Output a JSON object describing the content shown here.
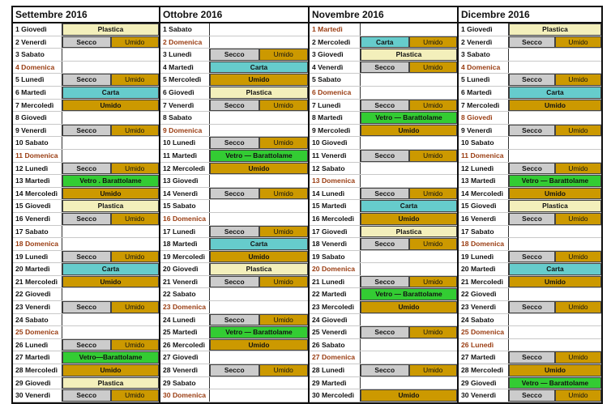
{
  "colors": {
    "Plastica": "#f3efbb",
    "Carta": "#66cccc",
    "Umido": "#cc9900",
    "Secco": "#cccccc",
    "Vetro": "#33cc33",
    "holiday_text": "#9a3d12"
  },
  "months": [
    {
      "title": "Settembre 2016",
      "days": [
        {
          "label": "1 Giovedì",
          "items": [
            "Plastica"
          ]
        },
        {
          "label": "2 Venerdì",
          "items": [
            "Secco",
            "Umido"
          ]
        },
        {
          "label": "3 Sabato",
          "items": []
        },
        {
          "label": "4 Domenica",
          "holiday": true,
          "items": []
        },
        {
          "label": "5 Lunedì",
          "items": [
            "Secco",
            "Umido"
          ]
        },
        {
          "label": "6 Martedì",
          "items": [
            "Carta"
          ]
        },
        {
          "label": "7 Mercoledì",
          "items": [
            "Umido"
          ]
        },
        {
          "label": "8 Giovedì",
          "items": []
        },
        {
          "label": "9 Venerdì",
          "items": [
            "Secco",
            "Umido"
          ]
        },
        {
          "label": "10 Sabato",
          "items": []
        },
        {
          "label": "11 Domenica",
          "holiday": true,
          "items": []
        },
        {
          "label": "12 Lunedì",
          "items": [
            "Secco",
            "Umido"
          ]
        },
        {
          "label": "13 Martedì",
          "items": [
            "Vetro . Barattolame"
          ]
        },
        {
          "label": "14 Mercoledì",
          "items": [
            "Umido"
          ]
        },
        {
          "label": "15 Giovedì",
          "items": [
            "Plastica"
          ]
        },
        {
          "label": "16 Venerdì",
          "items": [
            "Secco",
            "Umido"
          ]
        },
        {
          "label": "17 Sabato",
          "items": []
        },
        {
          "label": "18 Domenica",
          "holiday": true,
          "items": []
        },
        {
          "label": "19 Lunedì",
          "items": [
            "Secco",
            "Umido"
          ]
        },
        {
          "label": "20 Martedì",
          "items": [
            "Carta"
          ]
        },
        {
          "label": "21 Mercoledì",
          "items": [
            "Umido"
          ]
        },
        {
          "label": "22 Giovedì",
          "items": []
        },
        {
          "label": "23 Venerdì",
          "items": [
            "Secco",
            "Umido"
          ]
        },
        {
          "label": "24 Sabato",
          "items": []
        },
        {
          "label": "25 Domenica",
          "holiday": true,
          "items": []
        },
        {
          "label": "26 Lunedì",
          "items": [
            "Secco",
            "Umido"
          ]
        },
        {
          "label": "27 Martedì",
          "items": [
            "Vetro—Barattolame"
          ]
        },
        {
          "label": "28 Mercoledì",
          "items": [
            "Umido"
          ]
        },
        {
          "label": "29 Giovedì",
          "items": [
            "Plastica"
          ]
        },
        {
          "label": "30 Venerdì",
          "items": [
            "Secco",
            "Umido"
          ]
        }
      ]
    },
    {
      "title": "Ottobre 2016",
      "days": [
        {
          "label": "1 Sabato",
          "items": []
        },
        {
          "label": "2 Domenica",
          "holiday": true,
          "items": []
        },
        {
          "label": "3 Lunedì",
          "items": [
            "Secco",
            "Umido"
          ]
        },
        {
          "label": "4 Martedì",
          "items": [
            "Carta"
          ]
        },
        {
          "label": "5 Mercoledì",
          "items": [
            "Umido"
          ]
        },
        {
          "label": "6 Giovedì",
          "items": [
            "Plastica"
          ]
        },
        {
          "label": "7 Venerdì",
          "items": [
            "Secco",
            "Umido"
          ]
        },
        {
          "label": "8 Sabato",
          "items": []
        },
        {
          "label": "9 Domenica",
          "holiday": true,
          "items": []
        },
        {
          "label": "10 Lunedì",
          "items": [
            "Secco",
            "Umido"
          ]
        },
        {
          "label": "11 Martedì",
          "items": [
            "Vetro — Barattolame"
          ]
        },
        {
          "label": "12 Mercoledì",
          "items": [
            "Umido"
          ]
        },
        {
          "label": "13 Giovedì",
          "items": []
        },
        {
          "label": "14 Venerdì",
          "items": [
            "Secco",
            "Umido"
          ]
        },
        {
          "label": "15 Sabato",
          "items": []
        },
        {
          "label": "16 Domenica",
          "holiday": true,
          "items": []
        },
        {
          "label": "17 Lunedì",
          "items": [
            "Secco",
            "Umido"
          ]
        },
        {
          "label": "18 Martedì",
          "items": [
            "Carta"
          ]
        },
        {
          "label": "19 Mercoledì",
          "items": [
            "Umido"
          ]
        },
        {
          "label": "20 Giovedì",
          "items": [
            "Plastica"
          ]
        },
        {
          "label": "21 Venerdì",
          "items": [
            "Secco",
            "Umido"
          ]
        },
        {
          "label": "22 Sabato",
          "items": []
        },
        {
          "label": "23 Domenica",
          "holiday": true,
          "items": []
        },
        {
          "label": "24 Lunedì",
          "items": [
            "Secco",
            "Umido"
          ]
        },
        {
          "label": "25 Martedì",
          "items": [
            "Vetro — Barattolame"
          ]
        },
        {
          "label": "26 Mercoledì",
          "items": [
            "Umido"
          ]
        },
        {
          "label": "27 Giovedì",
          "items": []
        },
        {
          "label": "28 Venerdì",
          "items": [
            "Secco",
            "Umido"
          ]
        },
        {
          "label": "29 Sabato",
          "items": []
        },
        {
          "label": "30 Domenica",
          "holiday": true,
          "items": []
        }
      ]
    },
    {
      "title": "Novembre 2016",
      "days": [
        {
          "label": "1 Martedì",
          "holiday": true,
          "items": []
        },
        {
          "label": "2  Mercoledì",
          "items": [
            "Carta",
            "Umido"
          ]
        },
        {
          "label": "3 Giovedì",
          "items": [
            "Plastica"
          ]
        },
        {
          "label": "4 Venerdì",
          "items": [
            "Secco",
            "Umido"
          ]
        },
        {
          "label": "5 Sabato",
          "items": []
        },
        {
          "label": "6 Domenica",
          "holiday": true,
          "items": []
        },
        {
          "label": "7 Lunedì",
          "items": [
            "Secco",
            "Umido"
          ]
        },
        {
          "label": "8  Martedì",
          "items": [
            "Vetro — Barattolame"
          ]
        },
        {
          "label": "9 Mercoledì",
          "items": [
            "Umido"
          ]
        },
        {
          "label": "10 Giovedì",
          "items": []
        },
        {
          "label": "11 Venerdì",
          "items": [
            "Secco",
            "Umido"
          ]
        },
        {
          "label": "12 Sabato",
          "items": []
        },
        {
          "label": "13  Domenica",
          "holiday": true,
          "items": []
        },
        {
          "label": "14 Lunedì",
          "items": [
            "Secco",
            "Umido"
          ]
        },
        {
          "label": "15 Martedì",
          "items": [
            "Carta"
          ]
        },
        {
          "label": "16  Mercoledì",
          "items": [
            "Umido"
          ]
        },
        {
          "label": "17 Giovedì",
          "items": [
            "Plastica"
          ]
        },
        {
          "label": "18 Venerdì",
          "items": [
            "Secco",
            "Umido"
          ]
        },
        {
          "label": "19 Sabato",
          "items": []
        },
        {
          "label": "20 Domenica",
          "holiday": true,
          "items": []
        },
        {
          "label": "21 Lunedì",
          "items": [
            "Secco",
            "Umido"
          ]
        },
        {
          "label": "22  Martedì",
          "items": [
            "Vetro — Barattolame"
          ]
        },
        {
          "label": "23  Mercoledì",
          "items": [
            "Umido"
          ]
        },
        {
          "label": "24  Giovedì",
          "items": []
        },
        {
          "label": "25  Venerdì",
          "items": [
            "Secco",
            "Umido"
          ]
        },
        {
          "label": "26 Sabato",
          "items": []
        },
        {
          "label": "27 Domenica",
          "holiday": true,
          "items": []
        },
        {
          "label": "28 Lunedì",
          "items": [
            "Secco",
            "Umido"
          ]
        },
        {
          "label": "29 Martedì",
          "items": []
        },
        {
          "label": "30 Mercoledì",
          "items": [
            "Umido"
          ]
        }
      ]
    },
    {
      "title": "Dicembre 2016",
      "days": [
        {
          "label": "1 Giovedì",
          "items": [
            "Plastica"
          ]
        },
        {
          "label": "2 Venerdì",
          "items": [
            "Secco",
            "Umido"
          ]
        },
        {
          "label": "3 Sabato",
          "items": []
        },
        {
          "label": "4 Domenica",
          "holiday": true,
          "items": []
        },
        {
          "label": "5 Lunedì",
          "items": [
            "Secco",
            "Umido"
          ]
        },
        {
          "label": "6 Martedì",
          "items": [
            "Carta"
          ]
        },
        {
          "label": "7 Mercoledì",
          "items": [
            "Umido"
          ]
        },
        {
          "label": "8 Giovedì",
          "holiday": true,
          "items": []
        },
        {
          "label": "9 Venerdì",
          "items": [
            "Secco",
            "Umido"
          ]
        },
        {
          "label": "10 Sabato",
          "items": []
        },
        {
          "label": "11 Domenica",
          "holiday": true,
          "items": []
        },
        {
          "label": "12 Lunedì",
          "items": [
            "Secco",
            "Umido"
          ]
        },
        {
          "label": "13 Martedì",
          "items": [
            "Vetro — Barattolame"
          ]
        },
        {
          "label": "14 Mercoledì",
          "items": [
            "Umido"
          ]
        },
        {
          "label": "15 Giovedì",
          "items": [
            "Plastica"
          ]
        },
        {
          "label": "16 Venerdì",
          "items": [
            "Secco",
            "Umido"
          ]
        },
        {
          "label": "17 Sabato",
          "items": []
        },
        {
          "label": "18 Domenica",
          "holiday": true,
          "items": []
        },
        {
          "label": "19 Lunedì",
          "items": [
            "Secco",
            "Umido"
          ]
        },
        {
          "label": "20 Martedì",
          "items": [
            "Carta"
          ]
        },
        {
          "label": "21 Mercoledì",
          "items": [
            "Umido"
          ]
        },
        {
          "label": "22 Giovedì",
          "items": []
        },
        {
          "label": "23 Venerdì",
          "items": [
            "Secco",
            "Umido"
          ]
        },
        {
          "label": "24 Sabato",
          "items": []
        },
        {
          "label": "25 Domenica",
          "holiday": true,
          "items": []
        },
        {
          "label": "26 Lunedì",
          "holiday": true,
          "items": []
        },
        {
          "label": "27 Martedì",
          "items": [
            "Secco",
            "Umido"
          ]
        },
        {
          "label": "28 Mercoledì",
          "items": [
            "Umido"
          ]
        },
        {
          "label": "29 Giovedì",
          "items": [
            "Vetro — Barattolame"
          ]
        },
        {
          "label": "30 Venerdì",
          "items": [
            "Secco",
            "Umido"
          ]
        }
      ]
    }
  ]
}
